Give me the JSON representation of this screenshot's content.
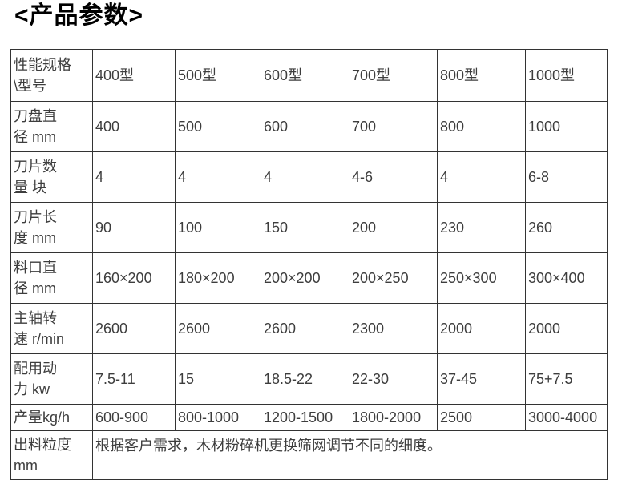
{
  "title": "<产品参数>",
  "table": {
    "header": {
      "label": "性能规格\n\\型号",
      "models": [
        "400型",
        "500型",
        "600型",
        "700型",
        "800型",
        "1000型"
      ]
    },
    "rows": [
      {
        "label": "刀盘直\n径 mm",
        "values": [
          "400",
          "500",
          "600",
          "700",
          "800",
          "1000"
        ]
      },
      {
        "label": "刀片数\n量 块",
        "values": [
          "4",
          "4",
          "4",
          "4-6",
          "4",
          "6-8"
        ]
      },
      {
        "label": "刀片长\n度 mm",
        "values": [
          "90",
          "100",
          "150",
          "200",
          "230",
          "260"
        ]
      },
      {
        "label": "料口直\n径 mm",
        "values": [
          "160×200",
          "180×200",
          "200×200",
          "200×250",
          "250×300",
          "300×400"
        ]
      },
      {
        "label": "主轴转\n速 r/min",
        "values": [
          "2600",
          "2600",
          "2600",
          "2300",
          "2000",
          "2000"
        ]
      },
      {
        "label": "配用动\n力 kw",
        "values": [
          "7.5-11",
          "15",
          "18.5-22",
          "22-30",
          "37-45",
          "75+7.5"
        ]
      },
      {
        "label": "产量kg/h",
        "values": [
          "600-900",
          "800-1000",
          "1200-1500",
          "1800-2000",
          "2500",
          "3000-4000"
        ]
      }
    ],
    "footer": {
      "label": "出料粒度\nmm",
      "note": "根据客户需求，木材粉碎机更换筛网调节不同的细度。"
    }
  },
  "colors": {
    "text": "#3d3d3d",
    "title": "#000000",
    "border": "#333333",
    "background": "#ffffff"
  }
}
